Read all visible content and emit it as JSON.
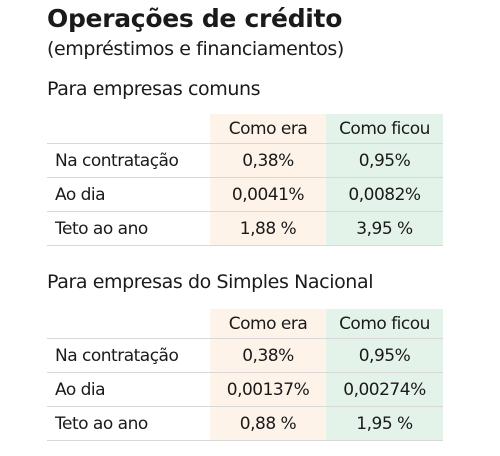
{
  "title": "Operações de crédito",
  "subtitle": "(empréstimos e financiamentos)",
  "colors": {
    "before_column_bg": "#fdf3e9",
    "after_column_bg": "#e4f3ea",
    "row_divider": "#d8d8d8"
  },
  "sections": [
    {
      "heading": "Para empresas comuns",
      "columns": [
        "Como era",
        "Como ficou"
      ],
      "rows": [
        {
          "label": "Na contratação",
          "before": "0,38%",
          "after": "0,95%"
        },
        {
          "label": "Ao dia",
          "before": "0,0041%",
          "after": "0,0082%"
        },
        {
          "label": "Teto ao ano",
          "before": "1,88 %",
          "after": "3,95 %"
        }
      ]
    },
    {
      "heading": "Para empresas do Simples Nacional",
      "columns": [
        "Como era",
        "Como ficou"
      ],
      "rows": [
        {
          "label": "Na contratação",
          "before": "0,38%",
          "after": "0,95%"
        },
        {
          "label": "Ao dia",
          "before": "0,00137%",
          "after": "0,00274%"
        },
        {
          "label": "Teto ao ano",
          "before": "0,88 %",
          "after": "1,95 %"
        }
      ]
    }
  ]
}
